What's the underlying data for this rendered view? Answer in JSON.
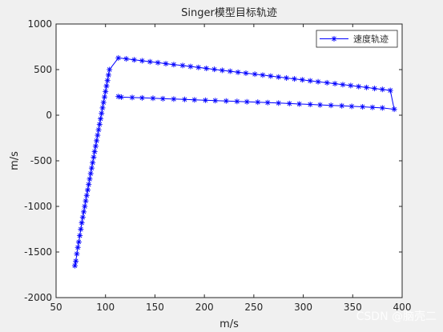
{
  "chart_data": {
    "type": "line",
    "title": "Singer模型目标轨迹",
    "xlabel": "m/s",
    "ylabel": "m/s",
    "xlim": [
      50,
      400
    ],
    "ylim": [
      -2000,
      1000
    ],
    "xticks": [
      50,
      100,
      150,
      200,
      250,
      300,
      350,
      400
    ],
    "yticks": [
      -2000,
      -1500,
      -1000,
      -500,
      0,
      500,
      1000
    ],
    "xtick_labels": [
      "50",
      "100",
      "150",
      "200",
      "250",
      "300",
      "350",
      "400"
    ],
    "ytick_labels": [
      "-2000",
      "-1500",
      "-1000",
      "-500",
      "0",
      "500",
      "1000"
    ],
    "grid": false,
    "legend_position": "top-right",
    "series": [
      {
        "name": "速度轨迹",
        "color": "#0000ff",
        "marker": "asterisk",
        "x": [
          69,
          70,
          71,
          72,
          73,
          74,
          75,
          76,
          77,
          78,
          79,
          80,
          81,
          82,
          83,
          84,
          85,
          86,
          87,
          88,
          89,
          90,
          91,
          92,
          93,
          94,
          95,
          96,
          97,
          98,
          99,
          100,
          101,
          102,
          103,
          104,
          113,
          121,
          129,
          137,
          145,
          153,
          161,
          169,
          178,
          186,
          194,
          202,
          210,
          218,
          226,
          234,
          242,
          251,
          259,
          267,
          275,
          283,
          291,
          299,
          307,
          315,
          324,
          332,
          340,
          348,
          356,
          364,
          372,
          380,
          388,
          392,
          380,
          370,
          360,
          349,
          339,
          328,
          317,
          307,
          296,
          286,
          275,
          264,
          254,
          243,
          233,
          222,
          211,
          201,
          190,
          180,
          169,
          158,
          148,
          137,
          127,
          116,
          113
        ],
        "y": [
          -1650,
          -1600,
          -1520,
          -1450,
          -1390,
          -1320,
          -1250,
          -1180,
          -1120,
          -1060,
          -1000,
          -940,
          -880,
          -820,
          -760,
          -700,
          -640,
          -580,
          -520,
          -460,
          -400,
          -340,
          -280,
          -220,
          -160,
          -100,
          -40,
          20,
          80,
          140,
          200,
          260,
          320,
          380,
          440,
          500,
          628,
          618,
          607,
          597,
          586,
          576,
          565,
          555,
          545,
          534,
          524,
          513,
          503,
          492,
          482,
          471,
          461,
          450,
          440,
          429,
          419,
          408,
          398,
          388,
          377,
          367,
          356,
          346,
          335,
          325,
          314,
          304,
          293,
          283,
          272,
          65,
          80,
          86,
          92,
          97,
          103,
          108,
          113,
          118,
          123,
          128,
          133,
          138,
          143,
          147,
          151,
          156,
          160,
          164,
          168,
          173,
          177,
          181,
          186,
          190,
          194,
          198,
          205
        ]
      }
    ]
  },
  "watermark": "CSDN @脑壳二"
}
